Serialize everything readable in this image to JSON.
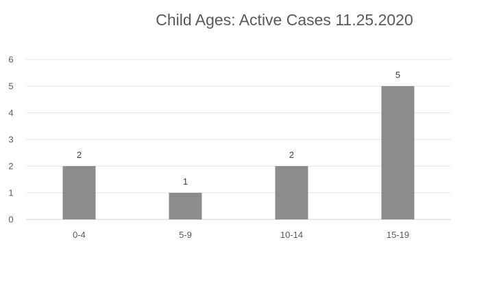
{
  "chart_data": {
    "type": "bar",
    "title": "Child Ages: Active Cases 11.25.2020",
    "xlabel": "",
    "ylabel": "",
    "categories": [
      "0-4",
      "5-9",
      "10-14",
      "15-19"
    ],
    "values": [
      2,
      1,
      2,
      5
    ],
    "data_labels": [
      "2",
      "1",
      "2",
      "5"
    ],
    "y_ticks": [
      "0",
      "1",
      "2",
      "3",
      "4",
      "5",
      "6"
    ],
    "ylim": [
      0,
      6
    ],
    "grid": true,
    "legend": "none",
    "bar_color": "#8c8c8c"
  }
}
